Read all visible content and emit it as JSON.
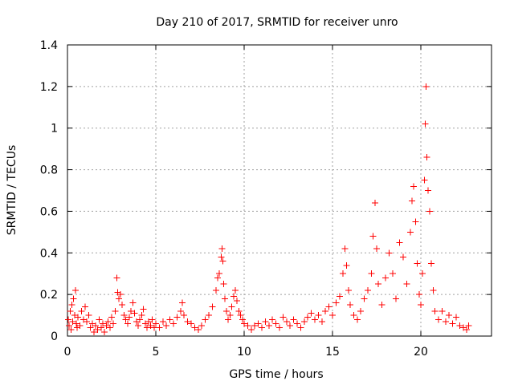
{
  "chart_data": {
    "type": "scatter",
    "title": "Day 210 of 2017, SRMTID for receiver unro",
    "xlabel": "GPS time / hours",
    "ylabel": "SRMTID / TECUs",
    "xlim": [
      0,
      24
    ],
    "ylim": [
      0,
      1.4
    ],
    "x_ticks": [
      0,
      5,
      10,
      15,
      20
    ],
    "x_tick_labels": [
      "0",
      "5",
      "10",
      "15",
      "20"
    ],
    "y_ticks": [
      0,
      0.2,
      0.4,
      0.6,
      0.8,
      1.0,
      1.2,
      1.4
    ],
    "y_tick_labels": [
      "0",
      "0.2",
      "0.4",
      "0.6",
      "0.8",
      "1",
      "1.2",
      "1.4"
    ],
    "grid": true,
    "marker": "+",
    "color": "#ff0000",
    "series": [
      {
        "name": "SRMTID",
        "points": [
          [
            0.05,
            0.08
          ],
          [
            0.1,
            0.05
          ],
          [
            0.15,
            0.12
          ],
          [
            0.2,
            0.03
          ],
          [
            0.25,
            0.15
          ],
          [
            0.3,
            0.07
          ],
          [
            0.35,
            0.18
          ],
          [
            0.4,
            0.1
          ],
          [
            0.45,
            0.22
          ],
          [
            0.5,
            0.06
          ],
          [
            0.55,
            0.04
          ],
          [
            0.6,
            0.09
          ],
          [
            0.7,
            0.05
          ],
          [
            0.8,
            0.12
          ],
          [
            0.9,
            0.08
          ],
          [
            1.0,
            0.14
          ],
          [
            1.1,
            0.07
          ],
          [
            1.2,
            0.1
          ],
          [
            1.3,
            0.04
          ],
          [
            1.4,
            0.06
          ],
          [
            1.5,
            0.02
          ],
          [
            1.6,
            0.05
          ],
          [
            1.7,
            0.03
          ],
          [
            1.8,
            0.08
          ],
          [
            1.9,
            0.04
          ],
          [
            2.0,
            0.06
          ],
          [
            2.1,
            0.02
          ],
          [
            2.2,
            0.05
          ],
          [
            2.3,
            0.07
          ],
          [
            2.4,
            0.04
          ],
          [
            2.5,
            0.09
          ],
          [
            2.6,
            0.06
          ],
          [
            2.7,
            0.12
          ],
          [
            2.8,
            0.28
          ],
          [
            2.85,
            0.21
          ],
          [
            2.9,
            0.18
          ],
          [
            3.0,
            0.2
          ],
          [
            3.1,
            0.15
          ],
          [
            3.2,
            0.1
          ],
          [
            3.3,
            0.08
          ],
          [
            3.4,
            0.06
          ],
          [
            3.5,
            0.09
          ],
          [
            3.6,
            0.12
          ],
          [
            3.7,
            0.16
          ],
          [
            3.8,
            0.11
          ],
          [
            3.9,
            0.07
          ],
          [
            4.0,
            0.05
          ],
          [
            4.1,
            0.08
          ],
          [
            4.2,
            0.1
          ],
          [
            4.3,
            0.13
          ],
          [
            4.4,
            0.06
          ],
          [
            4.5,
            0.04
          ],
          [
            4.6,
            0.07
          ],
          [
            4.7,
            0.05
          ],
          [
            4.8,
            0.08
          ],
          [
            4.9,
            0.04
          ],
          [
            5.0,
            0.06
          ],
          [
            5.2,
            0.04
          ],
          [
            5.4,
            0.07
          ],
          [
            5.6,
            0.05
          ],
          [
            5.8,
            0.08
          ],
          [
            6.0,
            0.06
          ],
          [
            6.2,
            0.09
          ],
          [
            6.4,
            0.12
          ],
          [
            6.5,
            0.16
          ],
          [
            6.6,
            0.1
          ],
          [
            6.8,
            0.07
          ],
          [
            7.0,
            0.06
          ],
          [
            7.2,
            0.04
          ],
          [
            7.4,
            0.03
          ],
          [
            7.6,
            0.05
          ],
          [
            7.8,
            0.08
          ],
          [
            8.0,
            0.1
          ],
          [
            8.2,
            0.14
          ],
          [
            8.4,
            0.22
          ],
          [
            8.5,
            0.28
          ],
          [
            8.6,
            0.3
          ],
          [
            8.7,
            0.38
          ],
          [
            8.75,
            0.42
          ],
          [
            8.8,
            0.36
          ],
          [
            8.85,
            0.25
          ],
          [
            8.9,
            0.18
          ],
          [
            9.0,
            0.12
          ],
          [
            9.1,
            0.08
          ],
          [
            9.2,
            0.1
          ],
          [
            9.3,
            0.14
          ],
          [
            9.4,
            0.19
          ],
          [
            9.5,
            0.22
          ],
          [
            9.6,
            0.17
          ],
          [
            9.7,
            0.12
          ],
          [
            9.8,
            0.1
          ],
          [
            9.9,
            0.08
          ],
          [
            10.0,
            0.06
          ],
          [
            10.2,
            0.05
          ],
          [
            10.4,
            0.03
          ],
          [
            10.6,
            0.05
          ],
          [
            10.8,
            0.06
          ],
          [
            11.0,
            0.04
          ],
          [
            11.2,
            0.07
          ],
          [
            11.4,
            0.05
          ],
          [
            11.6,
            0.08
          ],
          [
            11.8,
            0.06
          ],
          [
            12.0,
            0.04
          ],
          [
            12.2,
            0.09
          ],
          [
            12.4,
            0.07
          ],
          [
            12.6,
            0.05
          ],
          [
            12.8,
            0.08
          ],
          [
            13.0,
            0.06
          ],
          [
            13.2,
            0.04
          ],
          [
            13.4,
            0.07
          ],
          [
            13.6,
            0.09
          ],
          [
            13.8,
            0.11
          ],
          [
            14.0,
            0.08
          ],
          [
            14.2,
            0.1
          ],
          [
            14.4,
            0.07
          ],
          [
            14.6,
            0.12
          ],
          [
            14.8,
            0.14
          ],
          [
            15.0,
            0.1
          ],
          [
            15.2,
            0.16
          ],
          [
            15.4,
            0.19
          ],
          [
            15.6,
            0.3
          ],
          [
            15.7,
            0.42
          ],
          [
            15.8,
            0.34
          ],
          [
            15.9,
            0.22
          ],
          [
            16.0,
            0.15
          ],
          [
            16.2,
            0.1
          ],
          [
            16.4,
            0.08
          ],
          [
            16.6,
            0.12
          ],
          [
            16.8,
            0.18
          ],
          [
            17.0,
            0.22
          ],
          [
            17.2,
            0.3
          ],
          [
            17.3,
            0.48
          ],
          [
            17.4,
            0.64
          ],
          [
            17.5,
            0.42
          ],
          [
            17.6,
            0.25
          ],
          [
            17.8,
            0.15
          ],
          [
            18.0,
            0.28
          ],
          [
            18.2,
            0.4
          ],
          [
            18.4,
            0.3
          ],
          [
            18.6,
            0.18
          ],
          [
            18.8,
            0.45
          ],
          [
            19.0,
            0.38
          ],
          [
            19.2,
            0.25
          ],
          [
            19.4,
            0.5
          ],
          [
            19.5,
            0.65
          ],
          [
            19.6,
            0.72
          ],
          [
            19.7,
            0.55
          ],
          [
            19.8,
            0.35
          ],
          [
            19.9,
            0.2
          ],
          [
            20.0,
            0.15
          ],
          [
            20.1,
            0.3
          ],
          [
            20.2,
            0.75
          ],
          [
            20.25,
            1.02
          ],
          [
            20.3,
            1.2
          ],
          [
            20.35,
            0.86
          ],
          [
            20.4,
            0.7
          ],
          [
            20.5,
            0.6
          ],
          [
            20.6,
            0.35
          ],
          [
            20.7,
            0.22
          ],
          [
            20.8,
            0.12
          ],
          [
            21.0,
            0.08
          ],
          [
            21.2,
            0.12
          ],
          [
            21.4,
            0.07
          ],
          [
            21.6,
            0.1
          ],
          [
            21.8,
            0.06
          ],
          [
            22.0,
            0.09
          ],
          [
            22.2,
            0.05
          ],
          [
            22.4,
            0.04
          ],
          [
            22.6,
            0.03
          ],
          [
            22.7,
            0.05
          ]
        ]
      }
    ]
  }
}
